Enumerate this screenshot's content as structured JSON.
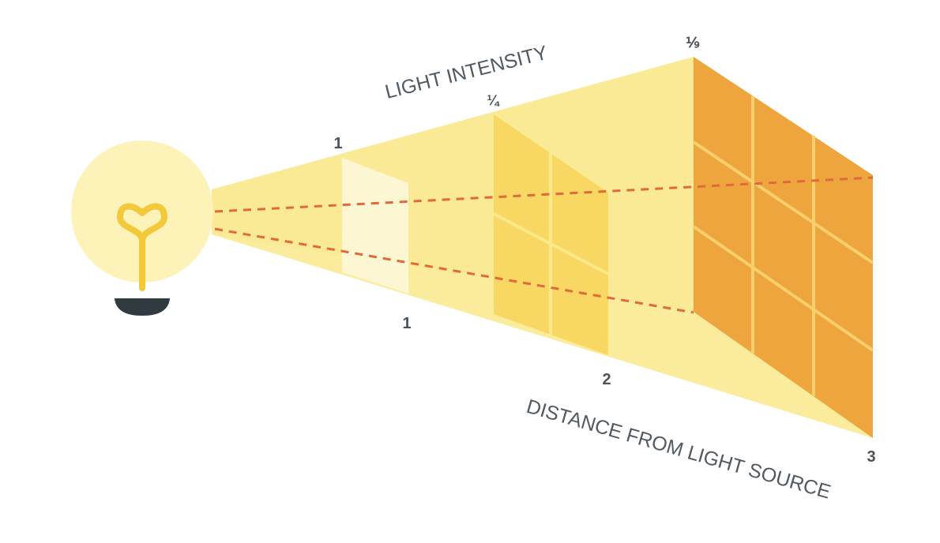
{
  "diagram": {
    "title_top": "LIGHT INTENSITY",
    "title_bottom": "DISTANCE FROM LIGHT SOURCE",
    "intensity_labels": [
      "1",
      "¼",
      "⅑"
    ],
    "distance_labels": [
      "1",
      "2",
      "3"
    ],
    "icons": {
      "light_source": "light-bulb-icon"
    },
    "colors": {
      "beam": "#fbeb9c",
      "bulb_glow": "#fdf3b8",
      "filament": "#f3c83a",
      "bulb_base": "#2f3b40",
      "panel_1": "#fdf6d2",
      "panel_2": "#f8d862",
      "panel_3": "#efa53d",
      "dashed_line": "#e06a3c"
    }
  }
}
